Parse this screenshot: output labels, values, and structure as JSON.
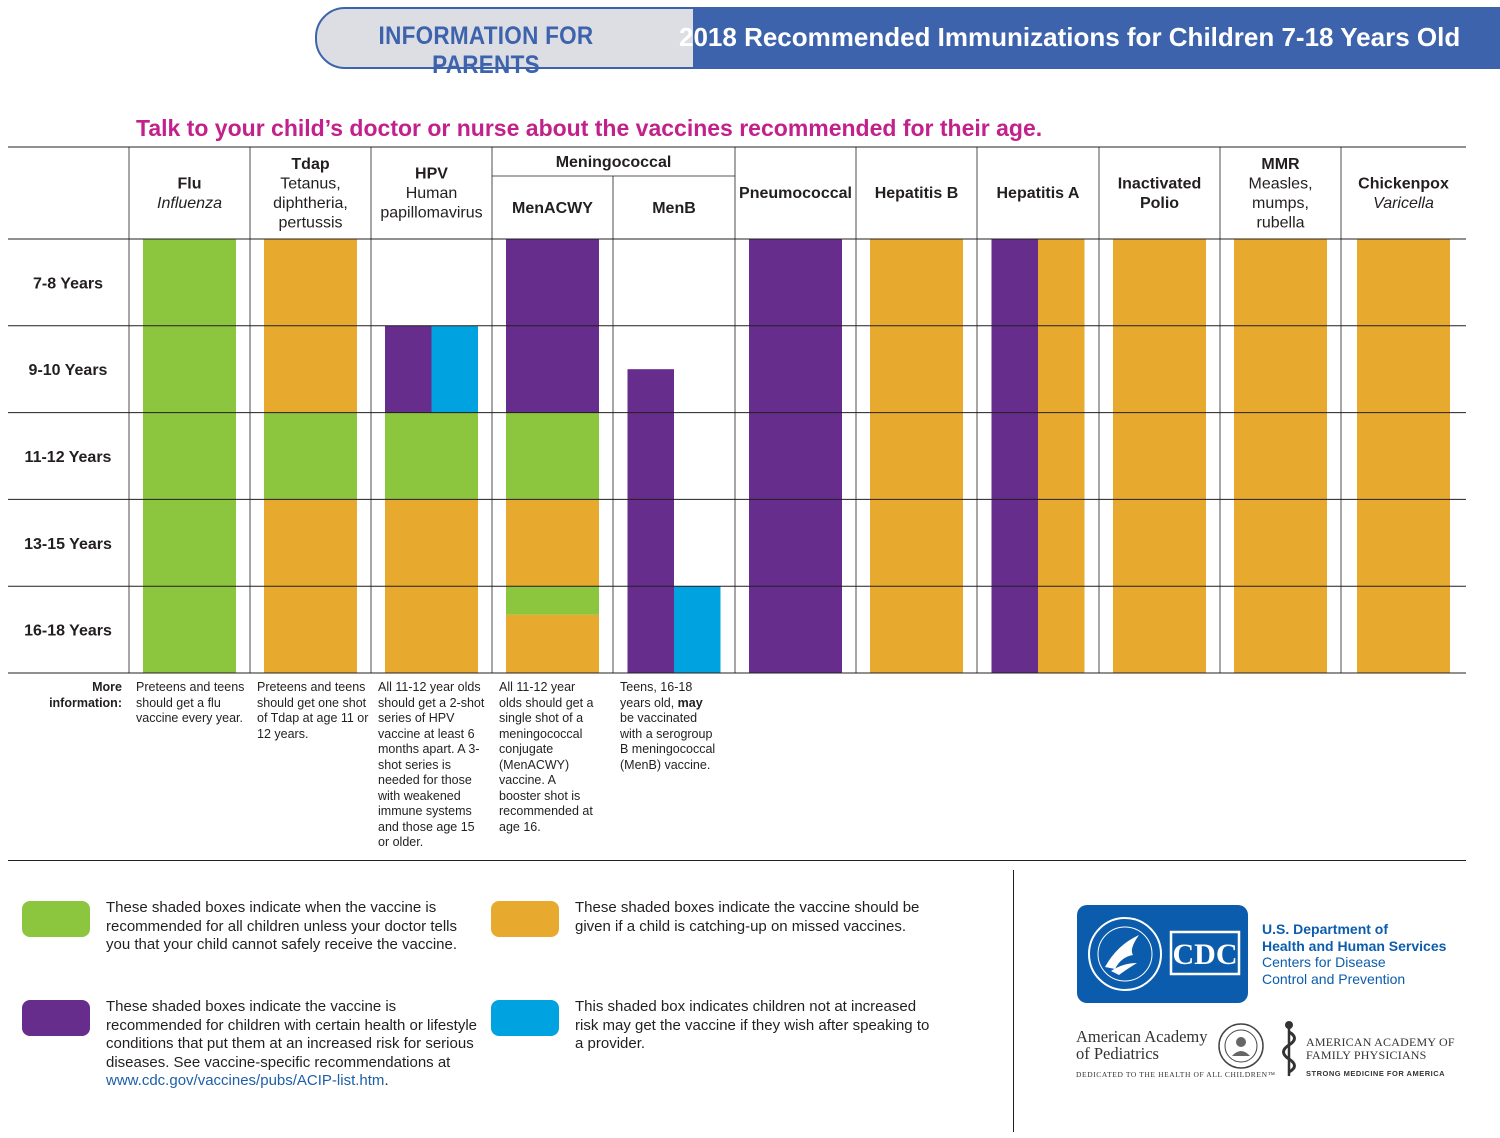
{
  "header": {
    "left_tab": "INFORMATION FOR PARENTS",
    "title": "2018 Recommended Immunizations for Children 7-18 Years Old"
  },
  "tagline": "Talk to your child’s doctor or nurse about the vaccines recommended for their age.",
  "colors": {
    "green": "#8cc63f",
    "orange": "#e8aa2e",
    "purple": "#662d8c",
    "blue": "#00a3e0",
    "banner_blue": "#3d63ad",
    "tagline_magenta": "#c2218c"
  },
  "chart_data": {
    "type": "table",
    "group_header": "Meningococcal",
    "columns": [
      {
        "key": "flu",
        "title": "Flu",
        "subtitle": [
          "Influenza"
        ],
        "italic": true
      },
      {
        "key": "tdap",
        "title": "Tdap",
        "subtitle": [
          "Tetanus,",
          "diphtheria,",
          "pertussis"
        ],
        "italic": false
      },
      {
        "key": "hpv",
        "title": "HPV",
        "subtitle": [
          "Human",
          "papillomavirus"
        ],
        "italic": false
      },
      {
        "key": "menacwy",
        "title": "MenACWY",
        "subtitle": [],
        "italic": false
      },
      {
        "key": "menb",
        "title": "MenB",
        "subtitle": [],
        "italic": false
      },
      {
        "key": "pneumococcal",
        "title": "Pneumococcal",
        "subtitle": [],
        "italic": false
      },
      {
        "key": "hepb",
        "title": "Hepatitis B",
        "subtitle": [],
        "italic": false
      },
      {
        "key": "hepa",
        "title": "Hepatitis A",
        "subtitle": [],
        "italic": false
      },
      {
        "key": "polio",
        "title": "Inactivated Polio",
        "subtitle": [],
        "italic": false
      },
      {
        "key": "mmr",
        "title": "MMR",
        "subtitle": [
          "Measles,",
          "mumps,",
          "rubella"
        ],
        "italic": false
      },
      {
        "key": "chickenpox",
        "title": "Chickenpox",
        "subtitle": [
          "Varicella"
        ],
        "italic": true
      }
    ],
    "rows": [
      "7-8 Years",
      "9-10 Years",
      "11-12 Years",
      "13-15 Years",
      "16-18 Years"
    ],
    "age_range": [
      7,
      18
    ],
    "bars": [
      {
        "col": "flu",
        "from": 0,
        "to": 5,
        "half": "full",
        "color": "green"
      },
      {
        "col": "tdap",
        "from": 0,
        "to": 2,
        "half": "full",
        "color": "orange"
      },
      {
        "col": "tdap",
        "from": 2,
        "to": 3,
        "half": "full",
        "color": "green"
      },
      {
        "col": "tdap",
        "from": 3,
        "to": 5,
        "half": "full",
        "color": "orange"
      },
      {
        "col": "hpv",
        "from": 1,
        "to": 2,
        "half": "left",
        "color": "purple"
      },
      {
        "col": "hpv",
        "from": 1,
        "to": 2,
        "half": "right",
        "color": "blue"
      },
      {
        "col": "hpv",
        "from": 2,
        "to": 3,
        "half": "full",
        "color": "green"
      },
      {
        "col": "hpv",
        "from": 3,
        "to": 5,
        "half": "full",
        "color": "orange"
      },
      {
        "col": "menacwy",
        "from": 0,
        "to": 2,
        "half": "full",
        "color": "purple"
      },
      {
        "col": "menacwy",
        "from": 2,
        "to": 3,
        "half": "full",
        "color": "green"
      },
      {
        "col": "menacwy",
        "from": 3,
        "to": 4,
        "half": "full",
        "color": "orange"
      },
      {
        "col": "menacwy",
        "from": 4,
        "to": 4.33,
        "half": "full",
        "color": "green"
      },
      {
        "col": "menacwy",
        "from": 4.33,
        "to": 5,
        "half": "full",
        "color": "orange"
      },
      {
        "col": "menb",
        "from": 1.5,
        "to": 5,
        "half": "left",
        "color": "purple"
      },
      {
        "col": "menb",
        "from": 4,
        "to": 5,
        "half": "right",
        "color": "blue"
      },
      {
        "col": "pneumococcal",
        "from": 0,
        "to": 5,
        "half": "full",
        "color": "purple"
      },
      {
        "col": "hepb",
        "from": 0,
        "to": 5,
        "half": "full",
        "color": "orange"
      },
      {
        "col": "hepa",
        "from": 0,
        "to": 5,
        "half": "left",
        "color": "purple"
      },
      {
        "col": "hepa",
        "from": 0,
        "to": 5,
        "half": "right",
        "color": "orange"
      },
      {
        "col": "polio",
        "from": 0,
        "to": 5,
        "half": "full",
        "color": "orange"
      },
      {
        "col": "mmr",
        "from": 0,
        "to": 5,
        "half": "full",
        "color": "orange"
      },
      {
        "col": "chickenpox",
        "from": 0,
        "to": 5,
        "half": "full",
        "color": "orange"
      }
    ]
  },
  "more_info": {
    "label": "More information:",
    "notes": {
      "flu": "Preteens and teens should get a flu vaccine every year.",
      "tdap": "Preteens and teens should get one shot of Tdap at age 11 or 12 years.",
      "hpv": "All 11-12 year olds should get a 2-shot series of HPV vaccine at least 6 months apart. A 3-shot series is needed for those with weakened immune systems and those age 15 or older.",
      "menacwy": "All 11-12 year olds should get a single shot of a meningococcal conjugate (MenACWY) vaccine. A booster shot is recommended at age 16.",
      "menb_before": "Teens, 16-18 years old, ",
      "menb_bold": "may",
      "menb_after": " be vaccinated with a serogroup B meningococcal (MenB) vaccine."
    }
  },
  "legend": {
    "green": "These shaded boxes indicate when the vaccine is recommended for all children unless your doctor tells you that your child cannot safely receive the vaccine.",
    "orange": "These shaded boxes indicate the vaccine should be given if a child is catching-up on missed vaccines.",
    "purple": "These shaded boxes indicate the vaccine is recommended for children with certain health or lifestyle conditions that put them at an increased risk for serious diseases. See vaccine-specific recommendations at ",
    "purple_link": "www.cdc.gov/vaccines/pubs/ACIP-list.htm",
    "purple_end": ".",
    "blue": "This shaded box indicates children not at increased risk may get the vaccine if they wish after speaking to a provider."
  },
  "logos": {
    "cdc": "CDC",
    "hhs_line1": "U.S. Department of",
    "hhs_line2": "Health and Human Services",
    "hhs_line3": "Centers for Disease",
    "hhs_line4": "Control and Prevention",
    "aap_line1": "American Academy",
    "aap_line2": "of Pediatrics",
    "aap_tag": "DEDICATED TO THE HEALTH OF ALL CHILDREN™",
    "aafp_line1": "AMERICAN ACADEMY OF",
    "aafp_line2": "FAMILY PHYSICIANS",
    "aafp_tag": "STRONG MEDICINE FOR AMERICA"
  }
}
